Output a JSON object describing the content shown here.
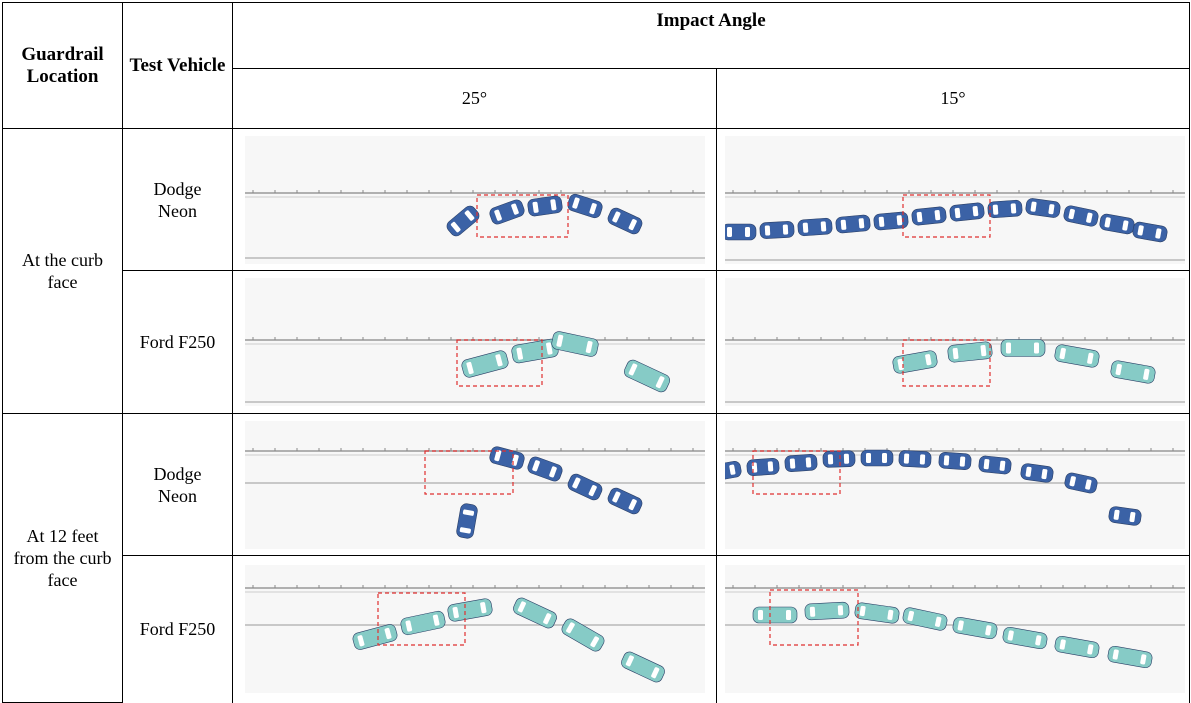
{
  "table": {
    "header": {
      "location": "Guardrail Location",
      "vehicle": "Test Vehicle",
      "impact_angle": "Impact Angle",
      "angles": [
        "25°",
        "15°"
      ]
    },
    "groups": [
      {
        "location": "At the curb face",
        "vehicles": [
          "Dodge Neon",
          "Ford F250"
        ]
      },
      {
        "location": "At 12 feet from the curb face",
        "vehicles": [
          "Dodge Neon",
          "Ford F250"
        ]
      }
    ]
  }
}
